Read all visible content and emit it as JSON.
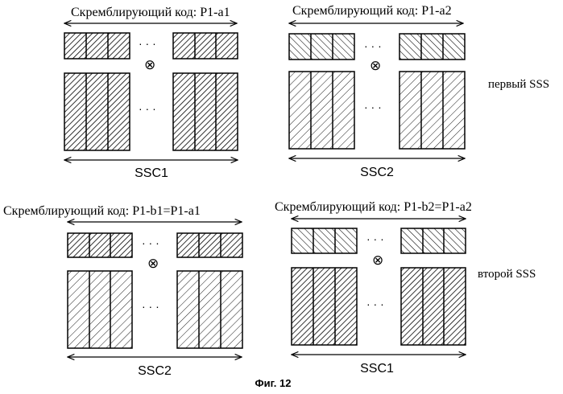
{
  "figure": {
    "caption": "Фиг. 12",
    "side_labels": {
      "first": "первый SSS",
      "second": "второй SSS"
    },
    "ellipsis": "· · ·",
    "multiply_symbol": "⊗",
    "panels": [
      {
        "code_label": "Скремблирующий код: P1-a1",
        "bottom_label": "SSC1",
        "code_pattern": "hatch-dense",
        "seq_pattern": "hatch-dense"
      },
      {
        "code_label": "Скремблирующий код: P1-a2",
        "bottom_label": "SSC2",
        "code_pattern": "hatch-back",
        "seq_pattern": "hatch-sparse"
      },
      {
        "code_label": "Скремблирующий код: P1-b1=P1-a1",
        "bottom_label": "SSC2",
        "code_pattern": "hatch-dense",
        "seq_pattern": "hatch-sparse"
      },
      {
        "code_label": "Скремблирующий код: P1-b2=P1-a2",
        "bottom_label": "SSC1",
        "code_pattern": "hatch-back",
        "seq_pattern": "hatch-dense"
      }
    ]
  }
}
